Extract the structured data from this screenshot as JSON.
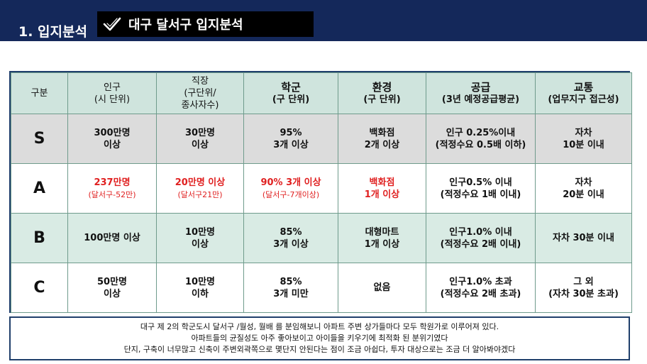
{
  "header": {
    "section_title": "1. 입지분석",
    "badge_title": "대구 달서구 입지분석",
    "badge_icon": "checkmark-icon"
  },
  "table": {
    "columns": [
      {
        "lines": [
          "구분"
        ]
      },
      {
        "lines": [
          "인구",
          "(시 단위)"
        ]
      },
      {
        "lines": [
          "직장",
          "(구단위/",
          "종사자수)"
        ]
      },
      {
        "lines": [
          "학군",
          "(구 단위)"
        ]
      },
      {
        "lines": [
          "환경",
          "(구 단위)"
        ]
      },
      {
        "lines": [
          "공급",
          "(3년 예정공급평균)"
        ]
      },
      {
        "lines": [
          "교통",
          "(업무지구 접근성)"
        ]
      }
    ],
    "rows": [
      {
        "grade": "S",
        "cells": [
          [
            "300만명",
            "이상"
          ],
          [
            "30만명",
            "이상"
          ],
          [
            "95%",
            "3개 이상"
          ],
          [
            "백화점",
            "2개 이상"
          ],
          [
            "인구 0.25%이내",
            "(적정수요 0.5배 이하)"
          ],
          [
            "자차",
            "10분 이내"
          ]
        ]
      },
      {
        "grade": "A",
        "cells": [
          [
            "237만명",
            "(달서구-52만)"
          ],
          [
            "20만명 이상",
            "(달서구21만)"
          ],
          [
            "90% 3개 이상",
            "(달서구-7개이상)"
          ],
          [
            "백화점",
            "1개 이상"
          ],
          [
            "인구0.5% 이내",
            "(적정수요 1배 이내)"
          ],
          [
            "자차",
            "20분 이내"
          ]
        ]
      },
      {
        "grade": "B",
        "cells": [
          [
            "100만명 이상",
            ""
          ],
          [
            "10만명",
            "이상"
          ],
          [
            "85%",
            "3개 이상"
          ],
          [
            "대형마트",
            "1개 이상"
          ],
          [
            "인구1.0% 이내",
            "(적정수요 2배 이내)"
          ],
          [
            "자차 30분 이내",
            ""
          ]
        ]
      },
      {
        "grade": "C",
        "cells": [
          [
            "50만명",
            "이상"
          ],
          [
            "10만명",
            "이하"
          ],
          [
            "85%",
            "3개 미만"
          ],
          [
            "없음",
            ""
          ],
          [
            "인구1.0% 초과",
            "(적정수요 2배 초과)"
          ],
          [
            "그 외",
            "(자차 30분 초과)"
          ]
        ]
      }
    ]
  },
  "note": {
    "lines": [
      "대구 제 2의 학군도시 달서구 /월성, 월배 를 분임해보니 아파트 주변 상가들마다 모두 학원가로 이루어져 있다.",
      "아파트들의 균질성도 아주 좋아보이고 아이들을 키우기에 최적화 된 분위기였다",
      "단지, 구축이 너무많고 신축이 주변외곽쪽으로 몇단지 안된다는 점이 조금 아쉽다, 투자 대상으로는 조금 더 알아봐야겠다"
    ]
  },
  "colors": {
    "header_bg": "#14285a",
    "badge_bg": "#000000",
    "header_row_bg": "#cfe4dd",
    "row_s_bg": "#dcdcdc",
    "row_b_bg": "#d9ebe4",
    "highlight_text": "#e02020"
  }
}
